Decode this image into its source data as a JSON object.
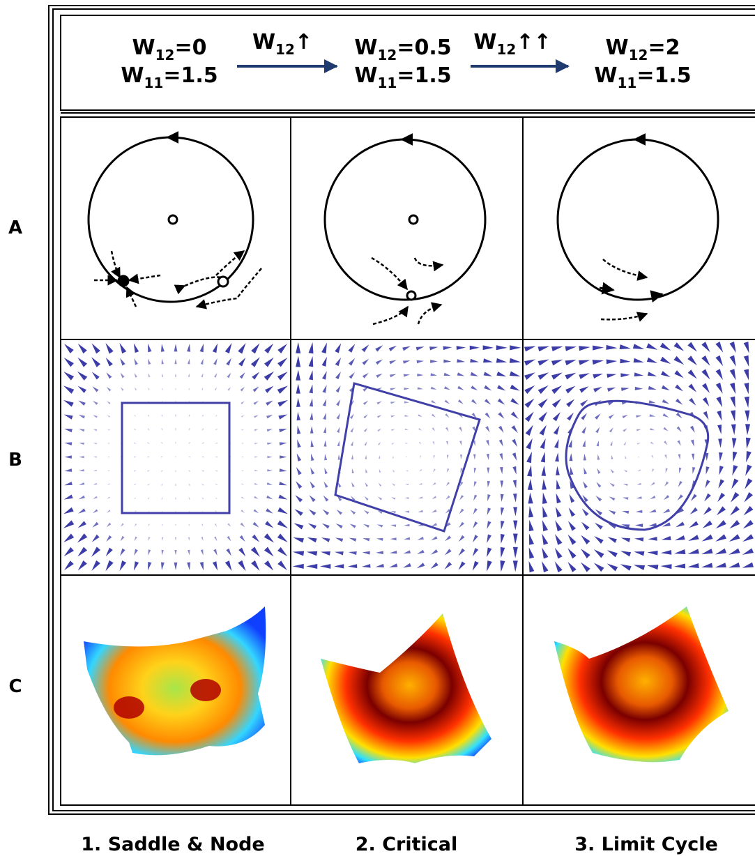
{
  "header": {
    "states": [
      {
        "lines": [
          {
            "base": "W",
            "sub": "12",
            "rest": "=0"
          },
          {
            "base": "W",
            "sub": "11",
            "rest": "=1.5"
          }
        ]
      },
      {
        "lines": [
          {
            "base": "W",
            "sub": "12",
            "rest": "=0.5"
          },
          {
            "base": "W",
            "sub": "11",
            "rest": "=1.5"
          }
        ]
      },
      {
        "lines": [
          {
            "base": "W",
            "sub": "12",
            "rest": "=2"
          },
          {
            "base": "W",
            "sub": "11",
            "rest": "=1.5"
          }
        ]
      }
    ],
    "transitions": [
      {
        "base": "W",
        "sub": "12",
        "rest": "↑"
      },
      {
        "base": "W",
        "sub": "12",
        "rest": "↑↑"
      }
    ]
  },
  "rows": [
    "A",
    "B",
    "C"
  ],
  "columns": [
    "1. Saddle & Node",
    "2. Critical",
    "3. Limit Cycle"
  ]
}
